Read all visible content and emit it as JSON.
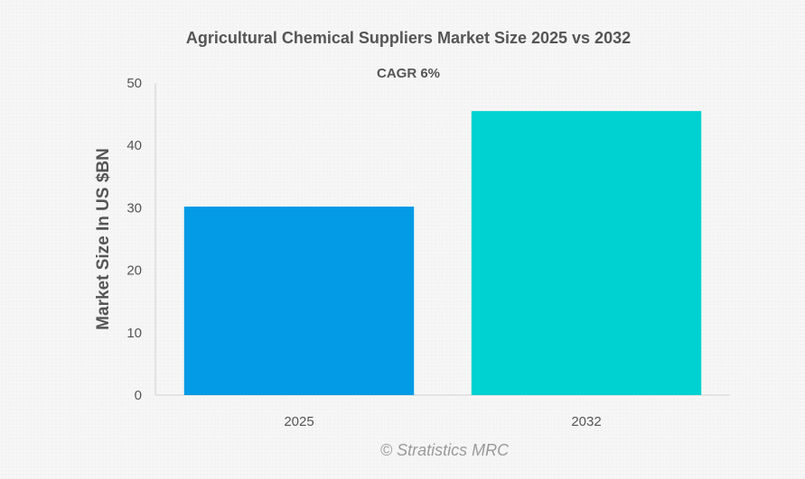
{
  "chart_data": {
    "type": "bar",
    "title": "Agricultural Chemical Suppliers Market Size 2025 vs 2032",
    "subtitle": "CAGR 6%",
    "xlabel": "",
    "ylabel": "Market Size In US $BN",
    "categories": [
      "2025",
      "2032"
    ],
    "values": [
      30.2,
      45.5
    ],
    "colors": [
      "#039be5",
      "#00d2d2"
    ],
    "ylim": [
      0,
      50
    ],
    "yticks": [
      "0",
      "10",
      "20",
      "30",
      "40",
      "50"
    ],
    "grid": false,
    "legend": "none"
  },
  "credit": "© Stratistics MRC"
}
